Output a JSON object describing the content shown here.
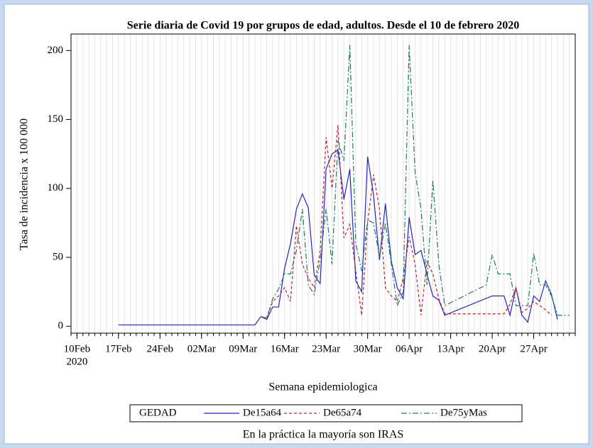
{
  "chart_data": {
    "type": "line",
    "title": "Serie diaria de Covid 19 por grupos de edad, adultos. Desde el 10 de febrero 2020",
    "x_label": "Semana epidemiologica",
    "y_label": "Tasa de incidencia x 100 000",
    "footnote": "En la práctica la mayoría son IRAS",
    "legend_title": "GEDAD",
    "x_year_label": "2020",
    "xlim": [
      "2020-02-09",
      "2020-05-04"
    ],
    "xticks": [
      {
        "value": "2020-02-10",
        "label": "10Feb"
      },
      {
        "value": "2020-02-17",
        "label": "17Feb"
      },
      {
        "value": "2020-02-24",
        "label": "24Feb"
      },
      {
        "value": "2020-03-02",
        "label": "02Mar"
      },
      {
        "value": "2020-03-09",
        "label": "09Mar"
      },
      {
        "value": "2020-03-16",
        "label": "16Mar"
      },
      {
        "value": "2020-03-23",
        "label": "23Mar"
      },
      {
        "value": "2020-03-30",
        "label": "30Mar"
      },
      {
        "value": "2020-04-06",
        "label": "06Apr"
      },
      {
        "value": "2020-04-13",
        "label": "13Apr"
      },
      {
        "value": "2020-04-20",
        "label": "20Apr"
      },
      {
        "value": "2020-04-27",
        "label": "27Apr"
      }
    ],
    "ylim": [
      -5,
      212
    ],
    "yticks": [
      0,
      50,
      100,
      150,
      200
    ],
    "grid": true,
    "series": [
      {
        "name": "De15a64",
        "color": "#2323c8",
        "dash": "none",
        "x": [
          "2020-02-17",
          "2020-03-11",
          "2020-03-12",
          "2020-03-13",
          "2020-03-14",
          "2020-03-15",
          "2020-03-16",
          "2020-03-17",
          "2020-03-18",
          "2020-03-19",
          "2020-03-20",
          "2020-03-21",
          "2020-03-22",
          "2020-03-23",
          "2020-03-24",
          "2020-03-25",
          "2020-03-26",
          "2020-03-27",
          "2020-03-28",
          "2020-03-29",
          "2020-03-30",
          "2020-03-31",
          "2020-04-01",
          "2020-04-02",
          "2020-04-03",
          "2020-04-04",
          "2020-04-05",
          "2020-04-06",
          "2020-04-07",
          "2020-04-08",
          "2020-04-09",
          "2020-04-10",
          "2020-04-11",
          "2020-04-12",
          "2020-04-20",
          "2020-04-21",
          "2020-04-22",
          "2020-04-23",
          "2020-04-24",
          "2020-04-25",
          "2020-04-26",
          "2020-04-27",
          "2020-04-28",
          "2020-04-29",
          "2020-04-30",
          "2020-05-01"
        ],
        "values": [
          1,
          1,
          7,
          5,
          14,
          14,
          42,
          60,
          85,
          96,
          86,
          37,
          31,
          114,
          125,
          128,
          92,
          114,
          33,
          25,
          123,
          95,
          48,
          89,
          47,
          28,
          20,
          79,
          52,
          55,
          38,
          22,
          19,
          8,
          22,
          22,
          22,
          8,
          28,
          8,
          3,
          22,
          18,
          33,
          23,
          5
        ]
      },
      {
        "name": "De65a74",
        "color": "#c0202a",
        "dash": "4 3",
        "x": [
          "2020-03-12",
          "2020-03-13",
          "2020-03-14",
          "2020-03-15",
          "2020-03-16",
          "2020-03-17",
          "2020-03-18",
          "2020-03-19",
          "2020-03-20",
          "2020-03-21",
          "2020-03-22",
          "2020-03-23",
          "2020-03-24",
          "2020-03-25",
          "2020-03-26",
          "2020-03-27",
          "2020-03-28",
          "2020-03-29",
          "2020-03-30",
          "2020-03-31",
          "2020-04-01",
          "2020-04-02",
          "2020-04-03",
          "2020-04-04",
          "2020-04-05",
          "2020-04-06",
          "2020-04-07",
          "2020-04-08",
          "2020-04-09",
          "2020-04-10",
          "2020-04-11",
          "2020-04-12",
          "2020-04-13",
          "2020-04-22",
          "2020-04-23",
          "2020-04-24",
          "2020-04-25",
          "2020-04-26",
          "2020-04-27",
          "2020-04-28",
          "2020-04-29",
          "2020-04-30"
        ],
        "values": [
          7,
          6,
          18,
          22,
          28,
          18,
          73,
          45,
          35,
          28,
          55,
          137,
          100,
          146,
          64,
          74,
          40,
          8,
          75,
          110,
          85,
          28,
          22,
          18,
          35,
          65,
          45,
          8,
          47,
          38,
          20,
          9,
          9,
          9,
          16,
          28,
          10,
          13,
          18,
          15,
          12,
          8
        ]
      },
      {
        "name": "De75yMas",
        "color": "#1d7a68",
        "dash": "8 3 2 3",
        "x": [
          "2020-03-12",
          "2020-03-13",
          "2020-03-14",
          "2020-03-15",
          "2020-03-16",
          "2020-03-17",
          "2020-03-18",
          "2020-03-19",
          "2020-03-20",
          "2020-03-21",
          "2020-03-22",
          "2020-03-23",
          "2020-03-24",
          "2020-03-25",
          "2020-03-26",
          "2020-03-27",
          "2020-03-28",
          "2020-03-29",
          "2020-03-30",
          "2020-03-31",
          "2020-04-01",
          "2020-04-02",
          "2020-04-03",
          "2020-04-04",
          "2020-04-05",
          "2020-04-06",
          "2020-04-07",
          "2020-04-08",
          "2020-04-09",
          "2020-04-10",
          "2020-04-11",
          "2020-04-12",
          "2020-04-19",
          "2020-04-20",
          "2020-04-21",
          "2020-04-22",
          "2020-04-23",
          "2020-04-24",
          "2020-04-25",
          "2020-04-26",
          "2020-04-27",
          "2020-04-28",
          "2020-04-29",
          "2020-04-30",
          "2020-05-01",
          "2020-05-02",
          "2020-05-03"
        ],
        "values": [
          7,
          6,
          20,
          27,
          38,
          38,
          55,
          85,
          30,
          23,
          48,
          85,
          45,
          135,
          120,
          204,
          60,
          40,
          77,
          75,
          50,
          75,
          45,
          15,
          25,
          204,
          112,
          85,
          30,
          106,
          45,
          15,
          30,
          52,
          38,
          38,
          38,
          15,
          15,
          15,
          53,
          30,
          30,
          22,
          8,
          8,
          8
        ]
      }
    ]
  }
}
